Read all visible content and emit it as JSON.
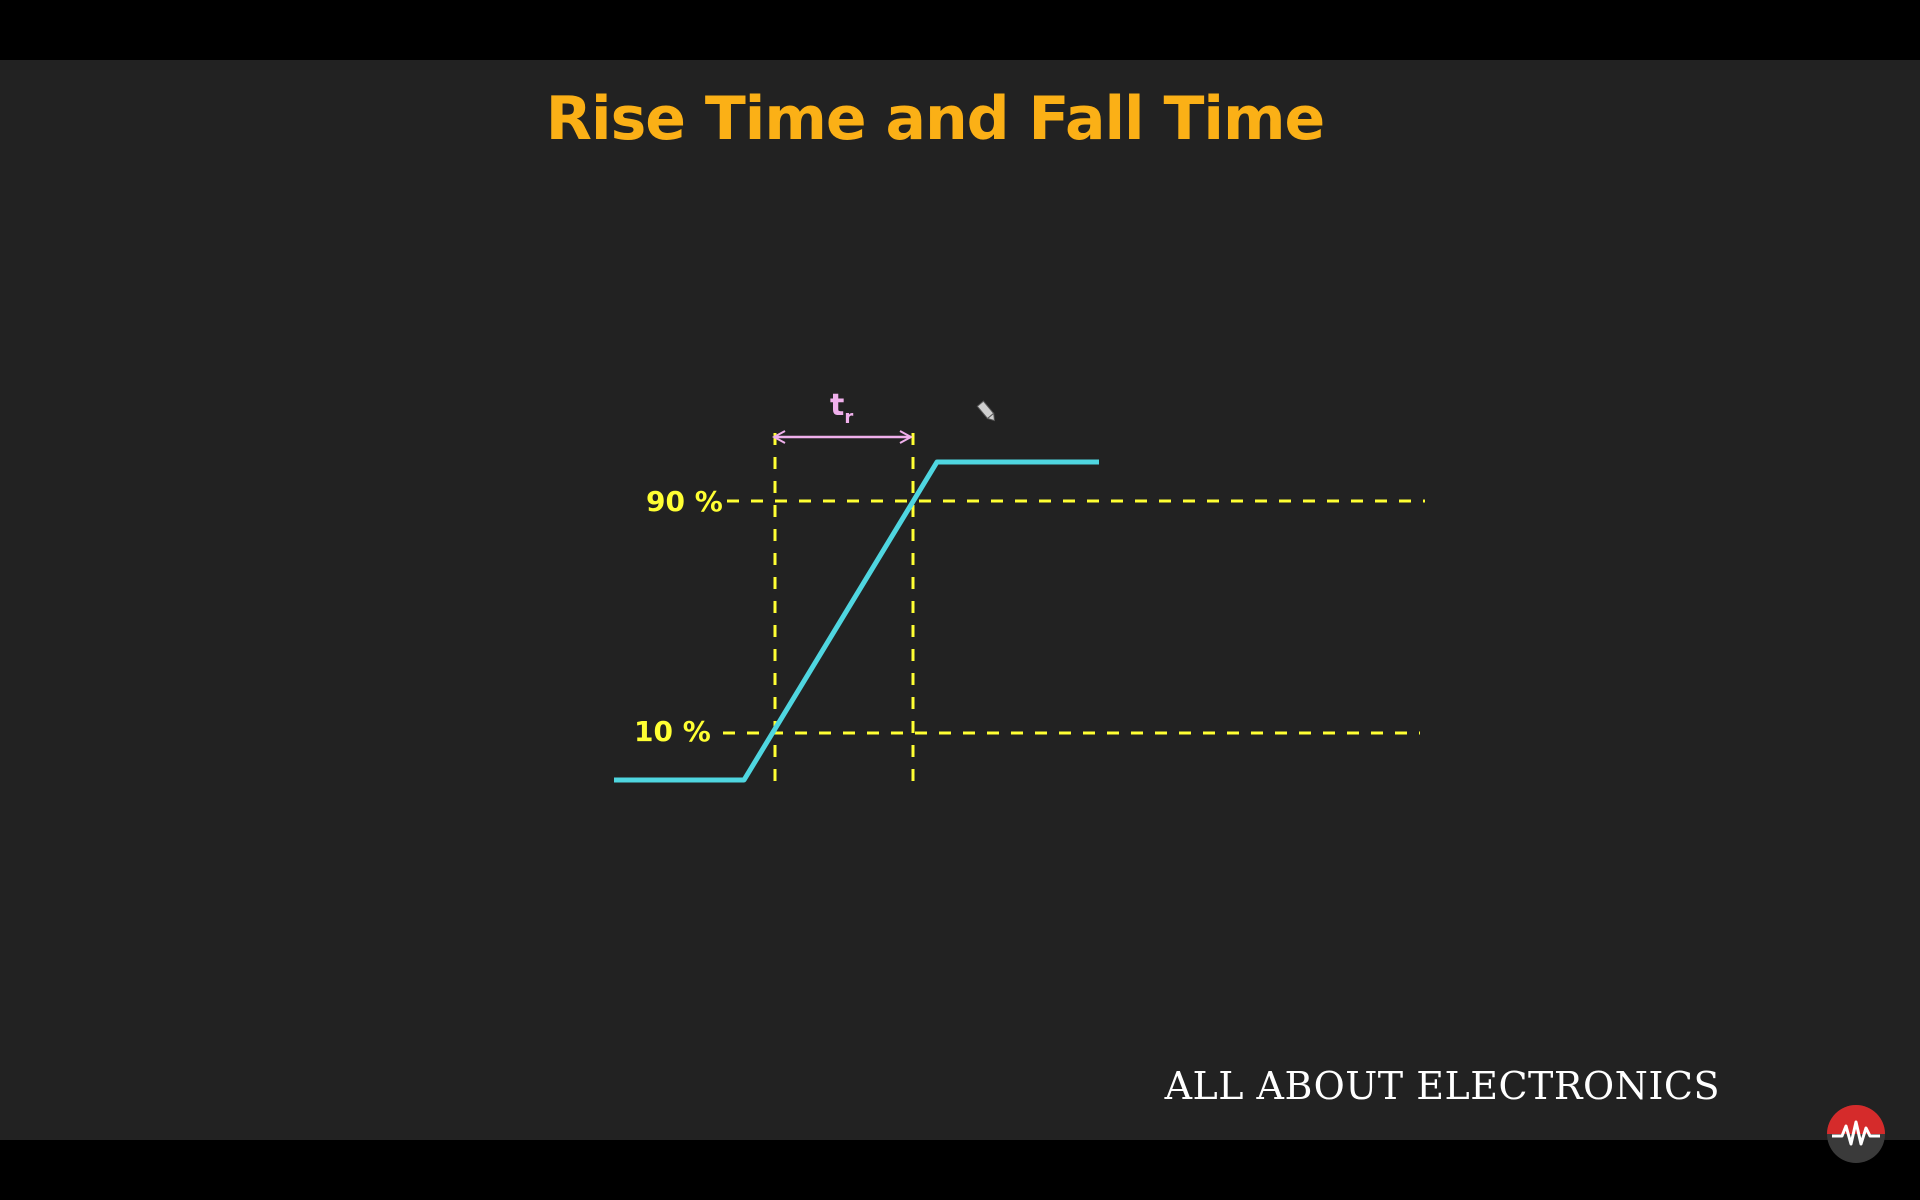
{
  "slide": {
    "title": "Rise Time and Fall Time",
    "brand": "ALL ABOUT ELECTRONICS"
  },
  "diagram": {
    "levels": [
      {
        "label": "90 %"
      },
      {
        "label": "10 %"
      }
    ],
    "rise_time": {
      "symbol": "t",
      "subscript": "r"
    },
    "colors": {
      "background": "#222222",
      "title": "#fbb016",
      "waveform": "#4fd6e0",
      "guides": "#ffff33",
      "arrow": "#f0b0ec"
    }
  },
  "icons": {
    "cursor": "pencil-icon",
    "logo": "waveform-logo-icon"
  }
}
